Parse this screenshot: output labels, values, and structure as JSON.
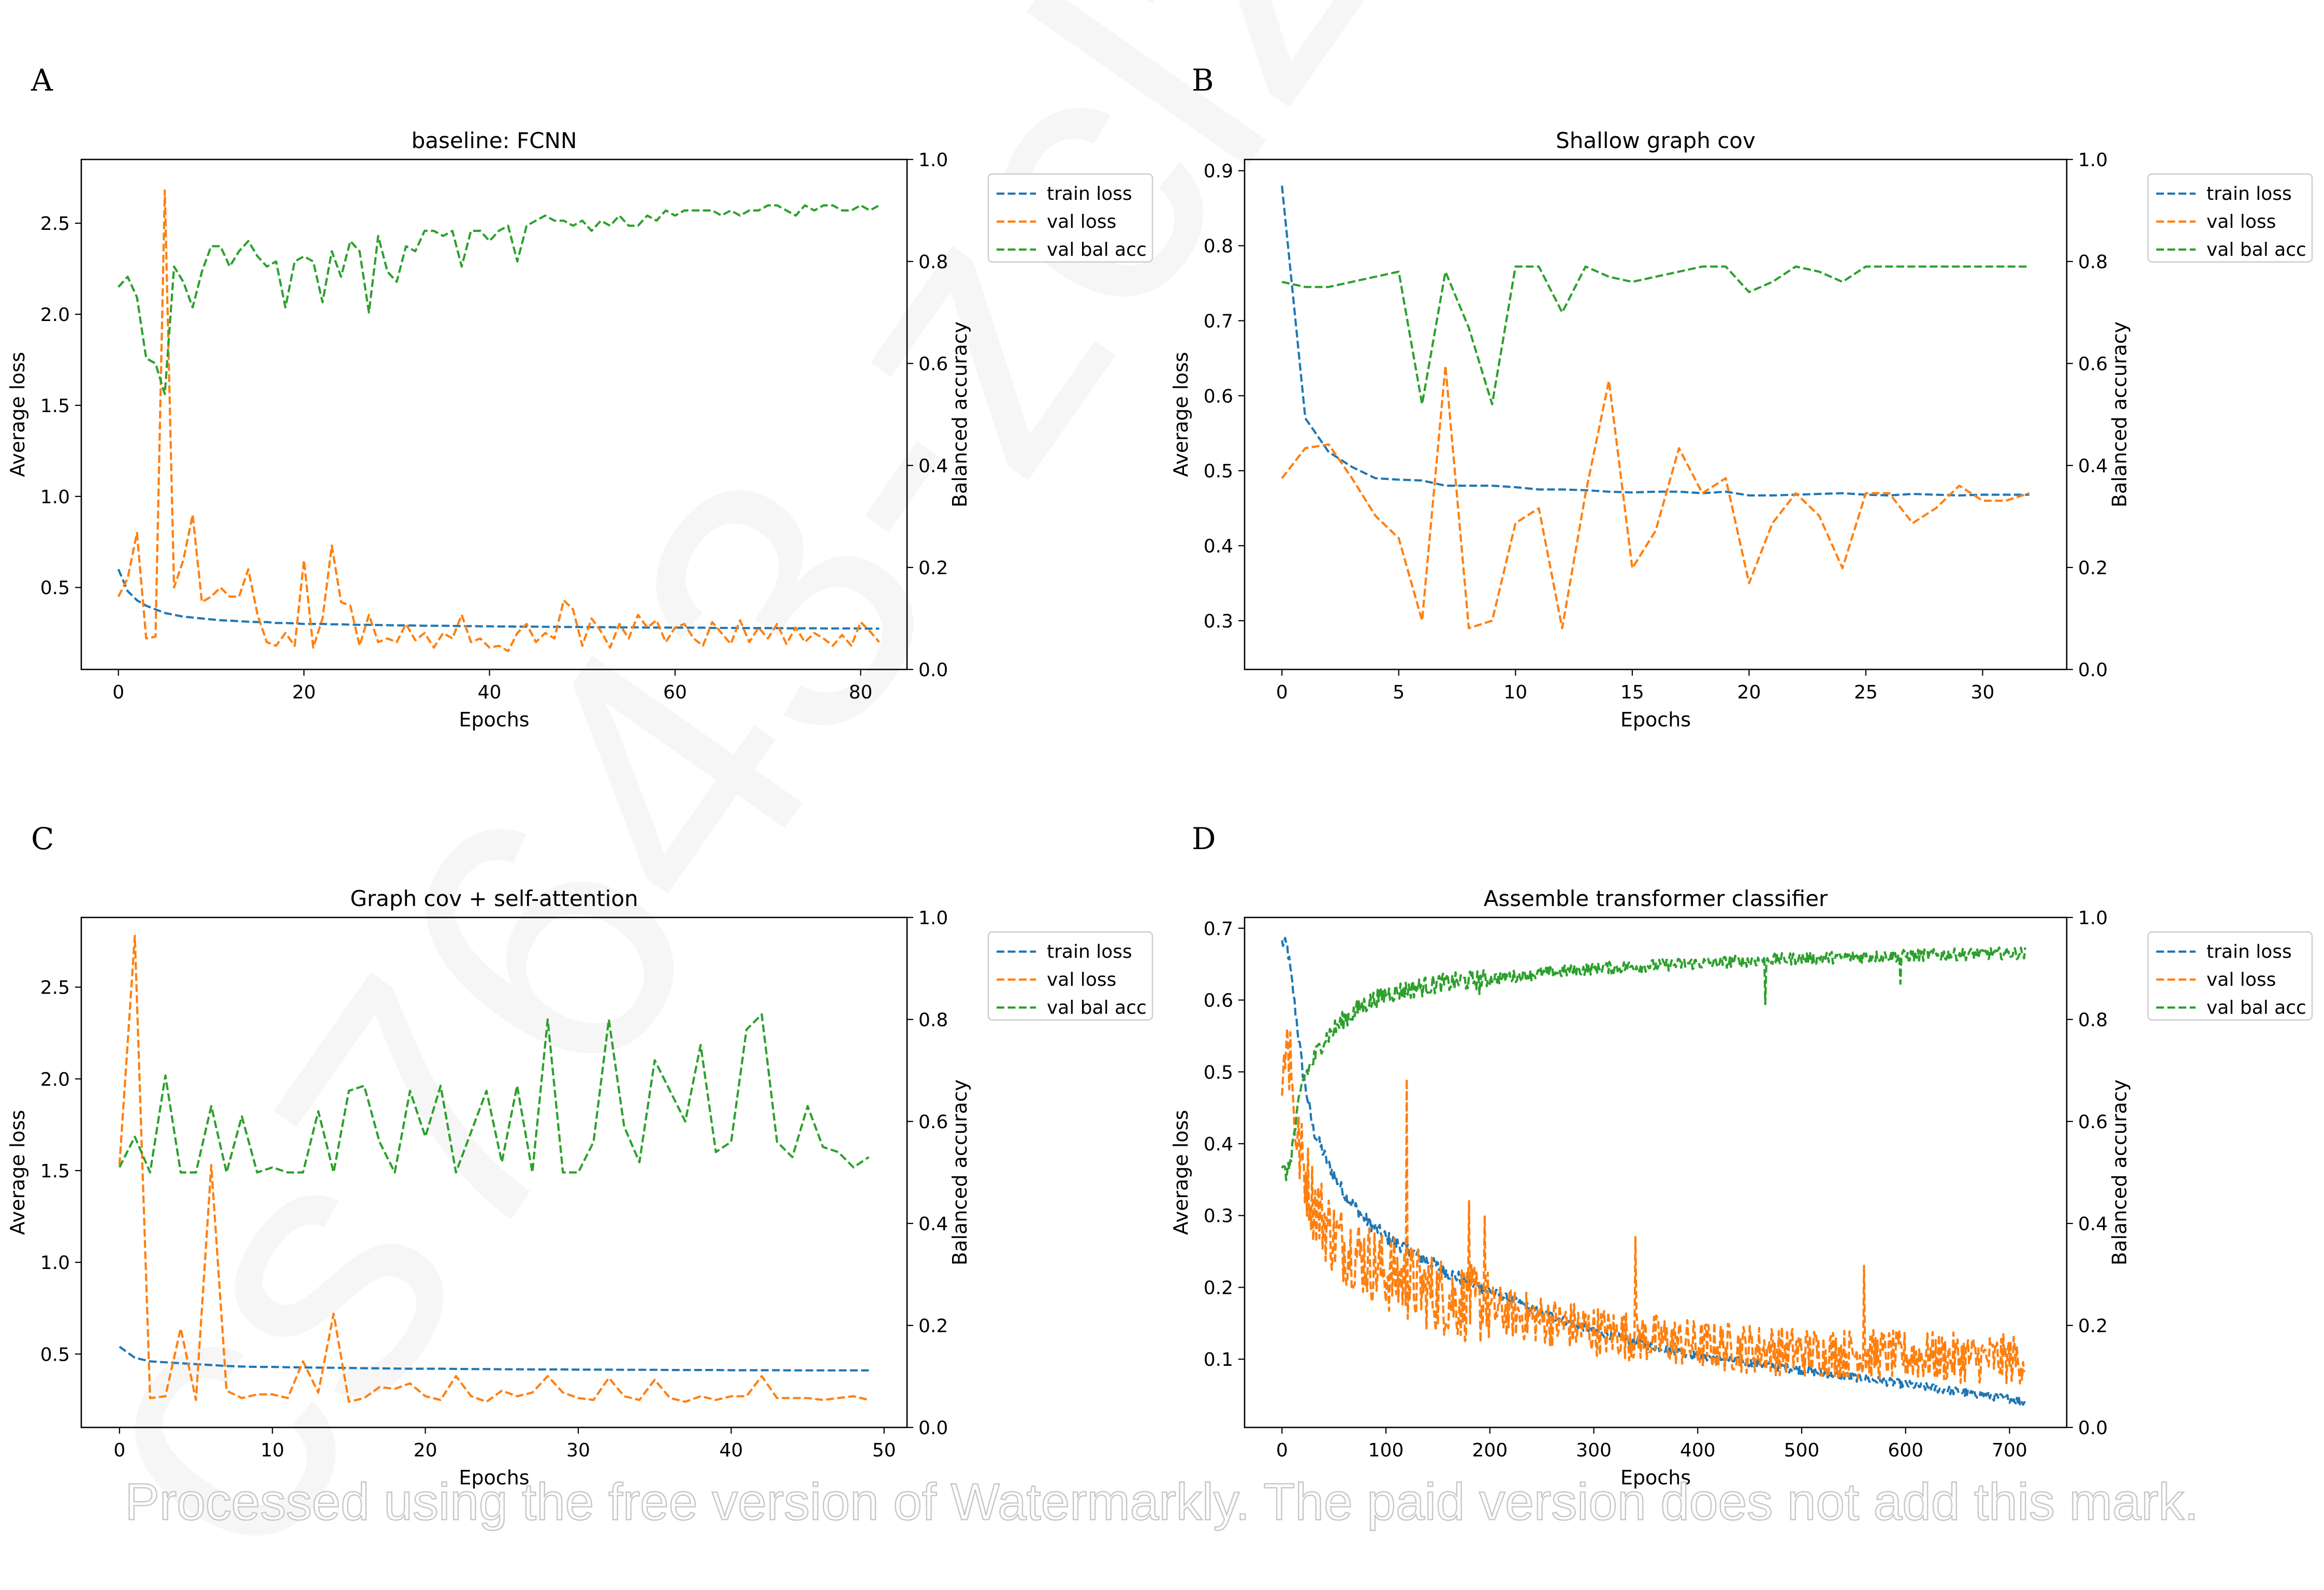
{
  "figure": {
    "watermark_text": "Processed using the free version of Watermarkly. The paid version does not add this mark.",
    "background_mark_text": "cs7643-zclzq",
    "colors": {
      "train_loss": "#1f77b4",
      "val_loss": "#ff7f0e",
      "val_bal_acc": "#2ca02c"
    }
  },
  "chart_data": [
    {
      "panel": "A",
      "type": "line",
      "title": "baseline: FCNN",
      "xlabel": "Epochs",
      "ylabel": "Average loss",
      "ylabel_right": "Balanced accuracy",
      "xlim": [
        -4,
        85
      ],
      "ylim": [
        0.05,
        2.85
      ],
      "ylim_right": [
        0.0,
        1.0
      ],
      "xticks": [
        0,
        20,
        40,
        60,
        80
      ],
      "yticks": [
        0.5,
        1.0,
        1.5,
        2.0,
        2.5
      ],
      "yticks_right": [
        0.0,
        0.2,
        0.4,
        0.6,
        0.8,
        1.0
      ],
      "legend": [
        "train loss",
        "val loss",
        "val bal acc"
      ],
      "legend_position": "outside-right",
      "series": [
        {
          "name": "train loss",
          "axis": "left",
          "color": "#1f77b4",
          "values": [
            0.6,
            0.48,
            0.43,
            0.4,
            0.38,
            0.36,
            0.35,
            0.34,
            0.335,
            0.33,
            0.325,
            0.32,
            0.318,
            0.315,
            0.312,
            0.31,
            0.31,
            0.305,
            0.305,
            0.303,
            0.3,
            0.3,
            0.3,
            0.298,
            0.298,
            0.296,
            0.295,
            0.295,
            0.294,
            0.293,
            0.292,
            0.292,
            0.291,
            0.29,
            0.29,
            0.29,
            0.289,
            0.288,
            0.288,
            0.287,
            0.287,
            0.286,
            0.286,
            0.285,
            0.285,
            0.285,
            0.284,
            0.284,
            0.283,
            0.283,
            0.283,
            0.282,
            0.282,
            0.282,
            0.281,
            0.281,
            0.281,
            0.28,
            0.28,
            0.28,
            0.28,
            0.279,
            0.279,
            0.279,
            0.278,
            0.278,
            0.278,
            0.278,
            0.277,
            0.277,
            0.277,
            0.277,
            0.276,
            0.276,
            0.276,
            0.276,
            0.275,
            0.275,
            0.275,
            0.275,
            0.275,
            0.274,
            0.274
          ]
        },
        {
          "name": "val loss",
          "axis": "left",
          "color": "#ff7f0e",
          "values": [
            0.45,
            0.55,
            0.8,
            0.22,
            0.23,
            2.68,
            0.5,
            0.65,
            0.9,
            0.42,
            0.45,
            0.5,
            0.45,
            0.45,
            0.6,
            0.35,
            0.2,
            0.18,
            0.25,
            0.18,
            0.65,
            0.17,
            0.33,
            0.73,
            0.42,
            0.4,
            0.18,
            0.35,
            0.2,
            0.22,
            0.2,
            0.3,
            0.21,
            0.25,
            0.17,
            0.25,
            0.22,
            0.35,
            0.2,
            0.22,
            0.17,
            0.18,
            0.15,
            0.25,
            0.3,
            0.2,
            0.25,
            0.22,
            0.43,
            0.38,
            0.18,
            0.33,
            0.26,
            0.17,
            0.3,
            0.22,
            0.35,
            0.28,
            0.32,
            0.2,
            0.28,
            0.3,
            0.22,
            0.18,
            0.31,
            0.25,
            0.19,
            0.32,
            0.2,
            0.28,
            0.22,
            0.3,
            0.19,
            0.28,
            0.2,
            0.25,
            0.22,
            0.18,
            0.24,
            0.18,
            0.31,
            0.26,
            0.2
          ]
        },
        {
          "name": "val bal acc",
          "axis": "right",
          "color": "#2ca02c",
          "values": [
            0.75,
            0.77,
            0.73,
            0.61,
            0.6,
            0.54,
            0.79,
            0.76,
            0.71,
            0.78,
            0.83,
            0.83,
            0.79,
            0.82,
            0.84,
            0.81,
            0.79,
            0.8,
            0.71,
            0.8,
            0.81,
            0.8,
            0.72,
            0.82,
            0.77,
            0.84,
            0.82,
            0.7,
            0.85,
            0.78,
            0.76,
            0.83,
            0.82,
            0.86,
            0.86,
            0.85,
            0.86,
            0.79,
            0.86,
            0.86,
            0.84,
            0.86,
            0.87,
            0.8,
            0.87,
            0.88,
            0.89,
            0.88,
            0.88,
            0.87,
            0.88,
            0.86,
            0.88,
            0.87,
            0.89,
            0.87,
            0.87,
            0.89,
            0.88,
            0.9,
            0.89,
            0.9,
            0.9,
            0.9,
            0.9,
            0.89,
            0.9,
            0.89,
            0.9,
            0.9,
            0.91,
            0.91,
            0.9,
            0.89,
            0.91,
            0.9,
            0.91,
            0.91,
            0.9,
            0.9,
            0.91,
            0.9,
            0.91
          ]
        }
      ]
    },
    {
      "panel": "B",
      "type": "line",
      "title": "Shallow graph cov",
      "xlabel": "Epochs",
      "ylabel": "Average loss",
      "ylabel_right": "Balanced accuracy",
      "xlim": [
        -1.6,
        33.6
      ],
      "ylim": [
        0.235,
        0.915
      ],
      "ylim_right": [
        0.0,
        1.0
      ],
      "xticks": [
        0,
        5,
        10,
        15,
        20,
        25,
        30
      ],
      "yticks": [
        0.3,
        0.4,
        0.5,
        0.6,
        0.7,
        0.8,
        0.9
      ],
      "yticks_right": [
        0.0,
        0.2,
        0.4,
        0.6,
        0.8,
        1.0
      ],
      "legend": [
        "train loss",
        "val loss",
        "val bal acc"
      ],
      "legend_position": "outside-right",
      "series": [
        {
          "name": "train loss",
          "axis": "left",
          "color": "#1f77b4",
          "values": [
            0.88,
            0.57,
            0.525,
            0.505,
            0.49,
            0.488,
            0.487,
            0.48,
            0.48,
            0.48,
            0.478,
            0.475,
            0.475,
            0.474,
            0.472,
            0.471,
            0.472,
            0.472,
            0.47,
            0.472,
            0.467,
            0.467,
            0.468,
            0.469,
            0.47,
            0.468,
            0.467,
            0.469,
            0.468,
            0.467,
            0.468,
            0.468,
            0.468
          ]
        },
        {
          "name": "val loss",
          "axis": "left",
          "color": "#ff7f0e",
          "values": [
            0.49,
            0.53,
            0.535,
            0.49,
            0.44,
            0.41,
            0.3,
            0.64,
            0.29,
            0.3,
            0.43,
            0.45,
            0.29,
            0.47,
            0.62,
            0.37,
            0.42,
            0.53,
            0.47,
            0.49,
            0.35,
            0.43,
            0.47,
            0.44,
            0.37,
            0.47,
            0.47,
            0.43,
            0.45,
            0.48,
            0.46,
            0.46,
            0.47
          ]
        },
        {
          "name": "val bal acc",
          "axis": "right",
          "color": "#2ca02c",
          "values": [
            0.76,
            0.75,
            0.75,
            0.76,
            0.77,
            0.78,
            0.52,
            0.78,
            0.67,
            0.52,
            0.79,
            0.79,
            0.7,
            0.79,
            0.77,
            0.76,
            0.77,
            0.78,
            0.79,
            0.79,
            0.74,
            0.76,
            0.79,
            0.78,
            0.76,
            0.79,
            0.79,
            0.79,
            0.79,
            0.79,
            0.79,
            0.79,
            0.79
          ]
        }
      ]
    },
    {
      "panel": "C",
      "type": "line",
      "title": "Graph cov + self-attention",
      "xlabel": "Epochs",
      "ylabel": "Average loss",
      "ylabel_right": "Balanced accuracy",
      "xlim": [
        -2.5,
        51.5
      ],
      "ylim": [
        0.1,
        2.88
      ],
      "ylim_right": [
        0.0,
        1.0
      ],
      "xticks": [
        0,
        10,
        20,
        30,
        40,
        50
      ],
      "yticks": [
        0.5,
        1.0,
        1.5,
        2.0,
        2.5
      ],
      "yticks_right": [
        0.0,
        0.2,
        0.4,
        0.6,
        0.8,
        1.0
      ],
      "legend": [
        "train loss",
        "val loss",
        "val bal acc"
      ],
      "legend_position": "outside-right",
      "series": [
        {
          "name": "train loss",
          "axis": "left",
          "color": "#1f77b4",
          "values": [
            0.54,
            0.48,
            0.46,
            0.455,
            0.45,
            0.445,
            0.44,
            0.435,
            0.432,
            0.43,
            0.43,
            0.428,
            0.427,
            0.426,
            0.425,
            0.424,
            0.423,
            0.422,
            0.421,
            0.42,
            0.42,
            0.42,
            0.419,
            0.418,
            0.418,
            0.417,
            0.417,
            0.416,
            0.416,
            0.416,
            0.415,
            0.415,
            0.415,
            0.414,
            0.414,
            0.414,
            0.413,
            0.413,
            0.413,
            0.413,
            0.412,
            0.412,
            0.412,
            0.412,
            0.411,
            0.411,
            0.411,
            0.411,
            0.411,
            0.411
          ]
        },
        {
          "name": "val loss",
          "axis": "left",
          "color": "#ff7f0e",
          "values": [
            1.53,
            2.78,
            0.26,
            0.27,
            0.64,
            0.25,
            1.53,
            0.3,
            0.26,
            0.28,
            0.28,
            0.26,
            0.46,
            0.29,
            0.72,
            0.24,
            0.26,
            0.32,
            0.31,
            0.34,
            0.27,
            0.25,
            0.38,
            0.27,
            0.24,
            0.3,
            0.27,
            0.29,
            0.38,
            0.29,
            0.26,
            0.25,
            0.37,
            0.27,
            0.25,
            0.36,
            0.26,
            0.24,
            0.27,
            0.25,
            0.27,
            0.27,
            0.38,
            0.26,
            0.26,
            0.26,
            0.25,
            0.26,
            0.27,
            0.25
          ]
        },
        {
          "name": "val bal acc",
          "axis": "right",
          "color": "#2ca02c",
          "values": [
            0.51,
            0.57,
            0.5,
            0.69,
            0.5,
            0.5,
            0.63,
            0.5,
            0.61,
            0.5,
            0.51,
            0.5,
            0.5,
            0.62,
            0.5,
            0.66,
            0.67,
            0.56,
            0.5,
            0.66,
            0.57,
            0.67,
            0.5,
            0.58,
            0.66,
            0.52,
            0.67,
            0.5,
            0.8,
            0.5,
            0.5,
            0.56,
            0.8,
            0.59,
            0.52,
            0.72,
            0.66,
            0.6,
            0.75,
            0.54,
            0.56,
            0.78,
            0.81,
            0.56,
            0.53,
            0.63,
            0.55,
            0.54,
            0.51,
            0.53
          ]
        }
      ]
    },
    {
      "panel": "D",
      "type": "line",
      "title": "Assemble transformer classifier",
      "xlabel": "Epochs",
      "ylabel": "Average loss",
      "ylabel_right": "Balanced accuracy",
      "xlim": [
        -36,
        755
      ],
      "ylim": [
        0.005,
        0.715
      ],
      "ylim_right": [
        0.0,
        1.0
      ],
      "xticks": [
        0,
        100,
        200,
        300,
        400,
        500,
        600,
        700
      ],
      "yticks": [
        0.1,
        0.2,
        0.3,
        0.4,
        0.5,
        0.6,
        0.7
      ],
      "yticks_right": [
        0.0,
        0.2,
        0.4,
        0.6,
        0.8,
        1.0
      ],
      "legend": [
        "train loss",
        "val loss",
        "val bal acc"
      ],
      "legend_position": "outside-right",
      "series": [
        {
          "name": "train loss",
          "axis": "left",
          "color": "#1f77b4",
          "n_points": 716,
          "anchors_x": [
            0,
            5,
            10,
            20,
            30,
            45,
            60,
            80,
            100,
            130,
            160,
            200,
            250,
            300,
            350,
            400,
            450,
            500,
            550,
            600,
            650,
            700,
            715
          ],
          "anchors_y": [
            0.68,
            0.675,
            0.62,
            0.5,
            0.42,
            0.37,
            0.33,
            0.295,
            0.27,
            0.245,
            0.22,
            0.195,
            0.165,
            0.14,
            0.12,
            0.105,
            0.095,
            0.085,
            0.075,
            0.065,
            0.055,
            0.045,
            0.04
          ],
          "noise": 0.006
        },
        {
          "name": "val loss",
          "axis": "left",
          "color": "#ff7f0e",
          "n_points": 716,
          "anchors_x": [
            0,
            5,
            15,
            30,
            50,
            80,
            100,
            150,
            200,
            250,
            300,
            350,
            400,
            450,
            500,
            550,
            600,
            650,
            700,
            715
          ],
          "anchors_y": [
            0.52,
            0.54,
            0.4,
            0.32,
            0.27,
            0.24,
            0.22,
            0.19,
            0.17,
            0.155,
            0.14,
            0.13,
            0.12,
            0.115,
            0.11,
            0.108,
            0.105,
            0.102,
            0.1,
            0.1
          ],
          "noise": 0.035,
          "spikes": [
            [
              8,
              0.555
            ],
            [
              120,
              0.49
            ],
            [
              180,
              0.32
            ],
            [
              195,
              0.3
            ],
            [
              340,
              0.27
            ],
            [
              560,
              0.23
            ]
          ]
        },
        {
          "name": "val bal acc",
          "axis": "right",
          "color": "#2ca02c",
          "n_points": 716,
          "anchors_x": [
            0,
            6,
            20,
            40,
            60,
            80,
            100,
            150,
            200,
            300,
            400,
            500,
            600,
            700,
            715
          ],
          "anchors_y": [
            0.5,
            0.5,
            0.68,
            0.76,
            0.8,
            0.83,
            0.85,
            0.87,
            0.88,
            0.9,
            0.91,
            0.92,
            0.925,
            0.93,
            0.93
          ],
          "noise": 0.012,
          "spikes": [
            [
              190,
              0.85
            ],
            [
              465,
              0.83
            ],
            [
              595,
              0.87
            ]
          ]
        }
      ]
    }
  ]
}
